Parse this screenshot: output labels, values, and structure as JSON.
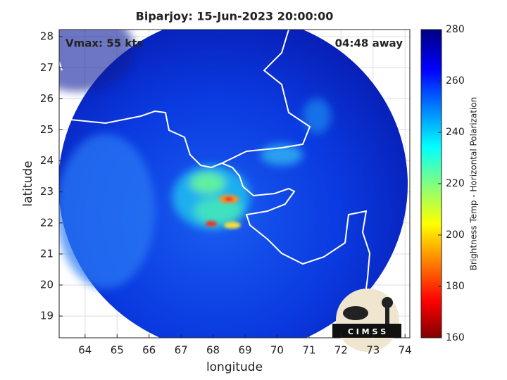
{
  "map": {
    "title": "Biparjoy: 15-Jun-2023 20:00:00",
    "annotations": {
      "vmax": "Vmax: 55 kts",
      "time_away": "04:48 away"
    },
    "xlabel": "longitude",
    "ylabel": "latitude",
    "xlim": [
      63.19,
      74.15
    ],
    "ylim": [
      18.3,
      28.23
    ],
    "xticks": [
      64,
      65,
      66,
      67,
      68,
      69,
      70,
      71,
      72,
      73,
      74
    ],
    "yticks": [
      19,
      20,
      21,
      22,
      23,
      24,
      25,
      26,
      27,
      28
    ],
    "grid": true,
    "colorbar": {
      "label": "Brightness Temp - Horizontal Polarization",
      "lim": [
        160,
        280
      ],
      "ticks": [
        160,
        180,
        200,
        220,
        240,
        260,
        280
      ]
    },
    "logo": "C I M S S"
  }
}
